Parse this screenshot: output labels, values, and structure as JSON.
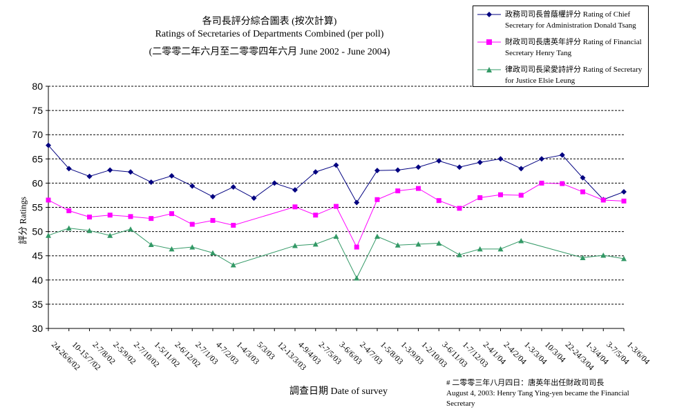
{
  "title_lines": [
    "各司長評分綜合圖表 (按次計算)",
    "Ratings of Secretaries of Departments Combined (per poll)",
    "(二零零二年六月至二零零四年六月 June 2002 - June 2004)"
  ],
  "note_lines": [
    "# 二零零三年八月四日：唐英年出任財政司司長",
    "August 4, 2003: Henry Tang Ying-yen became the Financial",
    "Secretary"
  ],
  "chart_data": {
    "type": "line",
    "xlabel": "調查日期 Date of survey",
    "ylabel": "評分 Ratings",
    "ylim": [
      30,
      80
    ],
    "yticks": [
      30,
      35,
      40,
      45,
      50,
      55,
      60,
      65,
      70,
      75,
      80
    ],
    "grid": true,
    "legend_position": "top-right",
    "categories": [
      "24-26/6/02",
      "10-15/7/02",
      "2-7/8/02",
      "2-5/9/02",
      "2-7/10/02",
      "1-5/11/02",
      "2-6/12/02",
      "2-7/1/03",
      "4-7/2/03",
      "1-4/3/03",
      "5/3/03",
      "12-13/3/03",
      "4-9/4/03",
      "2-7/5/03",
      "3-6/6/03",
      "2-4/7/03",
      "1-5/8/03",
      "1-3/9/03",
      "1-2/10/03",
      "3-6/11/03",
      "1-7/12/03",
      "2-4/1/04",
      "2-4/2/04",
      "1-3/3/04",
      "10/3/04",
      "22-24/3/04",
      "1-3/4/04",
      "3-7/5/04",
      "1-3/6/04"
    ],
    "series": [
      {
        "name": "政務司司長曾蔭權評分 Rating of Chief Secretary for Administration Donald Tsang",
        "color": "#000080",
        "marker": "diamond",
        "values": [
          67.8,
          63.0,
          61.4,
          62.7,
          62.3,
          60.2,
          61.5,
          59.4,
          57.2,
          59.2,
          56.9,
          60.0,
          58.6,
          62.3,
          63.7,
          56.0,
          62.6,
          62.7,
          63.3,
          64.6,
          63.3,
          64.3,
          65.0,
          63.0,
          65.0,
          65.8,
          61.1,
          56.6,
          58.2
        ]
      },
      {
        "name": "財政司司長唐英年評分 Rating of Financial Secretary Henry Tang",
        "color": "#FF00FF",
        "marker": "square",
        "values": [
          56.5,
          54.3,
          53.0,
          53.4,
          53.1,
          52.7,
          53.7,
          51.5,
          52.3,
          51.3,
          null,
          null,
          55.1,
          53.4,
          55.2,
          46.8,
          56.6,
          58.4,
          58.9,
          56.4,
          54.8,
          57.0,
          57.6,
          57.5,
          60.0,
          59.9,
          58.2,
          56.5,
          56.3
        ]
      },
      {
        "name": "律政司司長梁愛詩評分 Rating of Secretary for Justice Elsie Leung",
        "color": "#339966",
        "marker": "triangle",
        "values": [
          49.2,
          50.7,
          50.2,
          49.2,
          50.5,
          47.3,
          46.4,
          46.8,
          45.6,
          43.1,
          null,
          null,
          47.1,
          47.4,
          49.0,
          40.4,
          49.0,
          47.2,
          47.4,
          47.6,
          45.2,
          46.4,
          46.4,
          48.1,
          null,
          null,
          44.6,
          45.1,
          44.4
        ]
      }
    ]
  }
}
